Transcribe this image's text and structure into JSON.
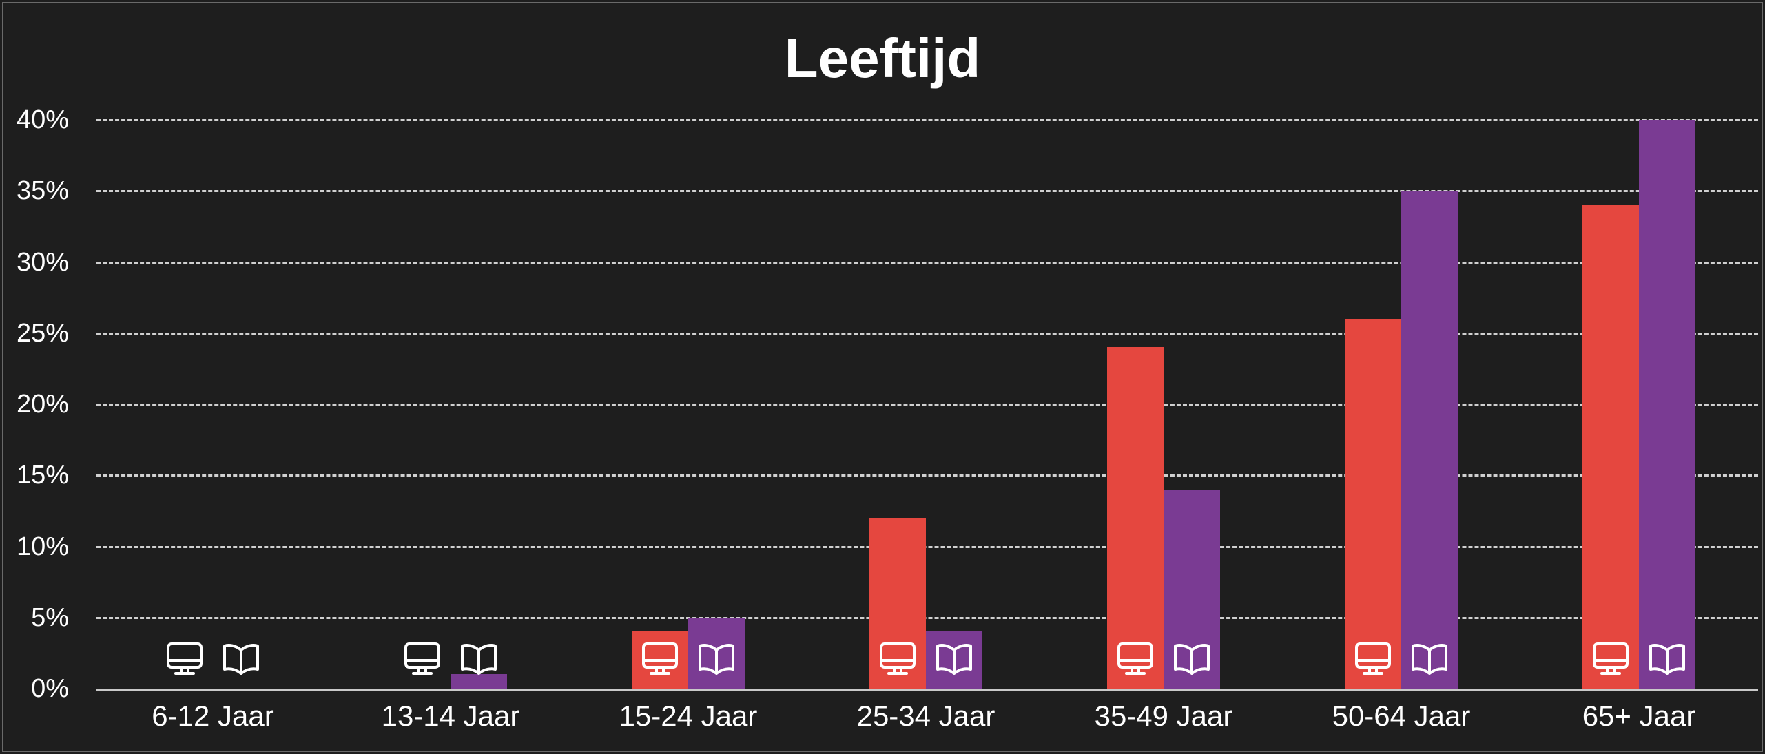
{
  "chart_data": {
    "type": "bar",
    "title": "Leeftijd",
    "xlabel": "",
    "ylabel": "",
    "categories": [
      "6-12 Jaar",
      "13-14 Jaar",
      "15-24 Jaar",
      "25-34 Jaar",
      "35-49 Jaar",
      "50-64 Jaar",
      "65+ Jaar"
    ],
    "series": [
      {
        "name": "Digitaal (computer)",
        "icon": "monitor-icon",
        "color": "#e5473f",
        "values": [
          0,
          0,
          4,
          12,
          24,
          26,
          34
        ]
      },
      {
        "name": "Print (boek)",
        "icon": "open-book-icon",
        "color": "#7a3b93",
        "values": [
          0,
          1,
          5,
          4,
          14,
          35,
          40
        ]
      }
    ],
    "yticks": [
      "0%",
      "5%",
      "10%",
      "15%",
      "20%",
      "25%",
      "30%",
      "35%",
      "40%"
    ],
    "ylim": [
      0,
      40
    ],
    "grid": true,
    "legend": "icons at base of each bar"
  },
  "colors": {
    "background": "#1e1e1e",
    "grid": "#d0d0d0",
    "series_digital": "#e5473f",
    "series_print": "#7a3b93",
    "text": "#ffffff"
  }
}
